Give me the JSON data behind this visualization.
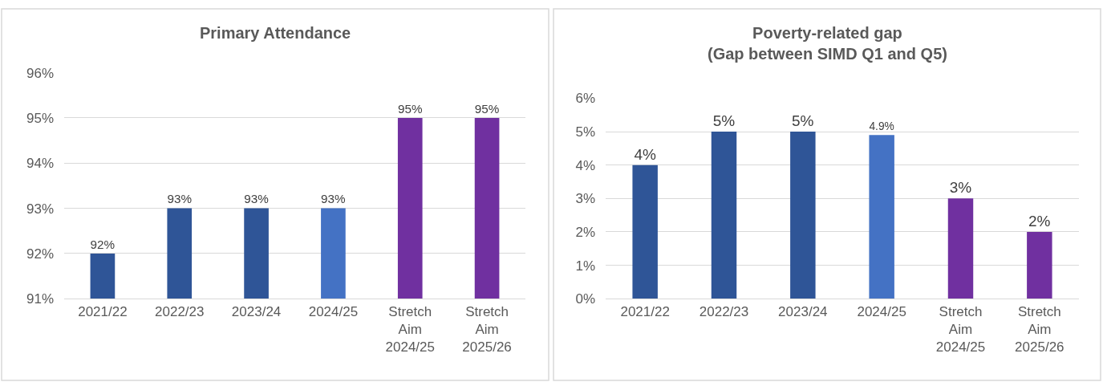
{
  "chart_data": [
    {
      "type": "bar",
      "title": "Primary Attendance",
      "categories": [
        "2021/22",
        "2022/23",
        "2023/24",
        "2024/25",
        "Stretch Aim 2024/25",
        "Stretch Aim 2025/26"
      ],
      "values": [
        92,
        93,
        93,
        93,
        95,
        95
      ],
      "colors": [
        "#2f5597",
        "#2f5597",
        "#2f5597",
        "#4472c4",
        "#7030a0",
        "#7030a0"
      ],
      "value_labels": [
        "92%",
        "93%",
        "93%",
        "93%",
        "95%",
        "95%"
      ],
      "ylim": [
        91,
        96
      ],
      "yticks": [
        {
          "value": 91,
          "label": "91%"
        },
        {
          "value": 92,
          "label": "92%"
        },
        {
          "value": 93,
          "label": "93%"
        },
        {
          "value": 94,
          "label": "94%"
        },
        {
          "value": 95,
          "label": "95%"
        },
        {
          "value": 96,
          "label": "96%"
        }
      ],
      "grid": "y"
    },
    {
      "type": "bar",
      "title": "Poverty-related gap\n(Gap between SIMD Q1 and Q5)",
      "categories": [
        "2021/22",
        "2022/23",
        "2023/24",
        "2024/25",
        "Stretch Aim 2024/25",
        "Stretch Aim 2025/26"
      ],
      "values": [
        4,
        5,
        5,
        4.9,
        3,
        2
      ],
      "colors": [
        "#2f5597",
        "#2f5597",
        "#2f5597",
        "#4472c4",
        "#7030a0",
        "#7030a0"
      ],
      "value_labels": [
        "4%",
        "5%",
        "5%",
        "4.9%",
        "3%",
        "2%"
      ],
      "ylim": [
        0,
        6
      ],
      "yticks": [
        {
          "value": 0,
          "label": "0%"
        },
        {
          "value": 1,
          "label": "1%"
        },
        {
          "value": 2,
          "label": "2%"
        },
        {
          "value": 3,
          "label": "3%"
        },
        {
          "value": 4,
          "label": "4%"
        },
        {
          "value": 5,
          "label": "5%"
        },
        {
          "value": 6,
          "label": "6%"
        }
      ],
      "grid": "y"
    }
  ]
}
